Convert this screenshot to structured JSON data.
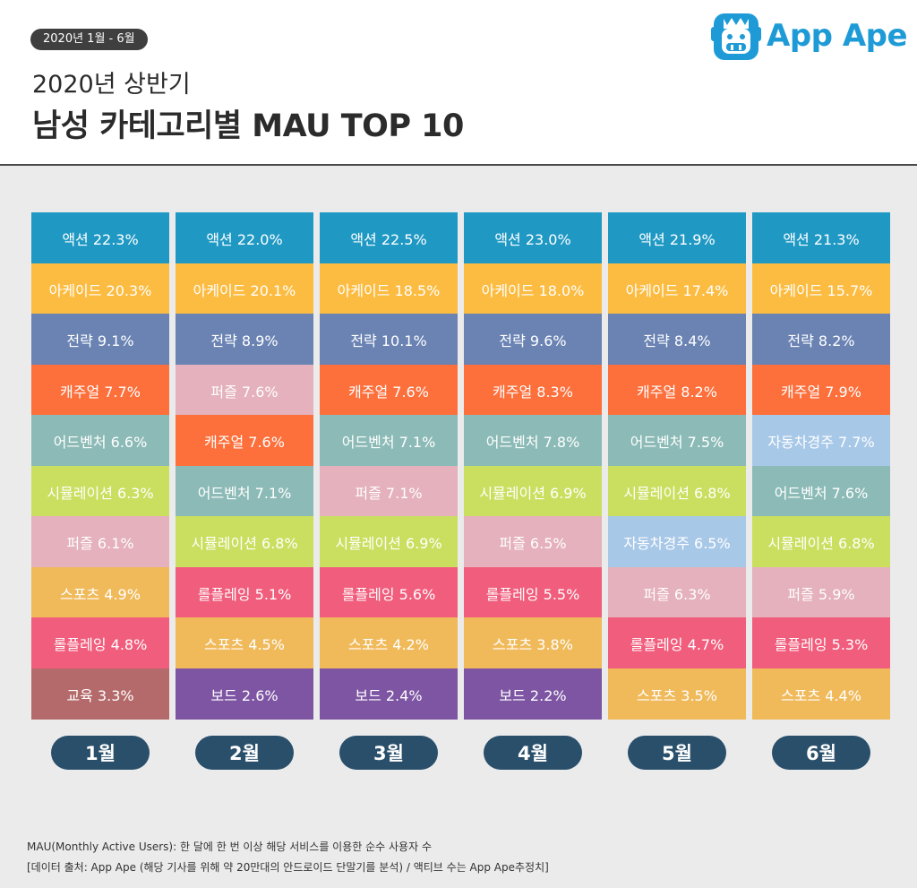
{
  "header": {
    "period_badge": "2020년 1월 - 6월",
    "title_line1": "2020년 상반기",
    "title_line2": "남성 카테고리별 MAU TOP 10"
  },
  "brand": {
    "name": "App Ape",
    "icon": "app-ape-logo-icon",
    "color": "#1e9bd7"
  },
  "category_colors": {
    "액션": "#1f99c4",
    "아케이드": "#fcbc42",
    "전략": "#6a83b3",
    "캐주얼": "#fd6f3b",
    "어드벤처": "#8cbbb7",
    "시뮬레이션": "#cadf5f",
    "퍼즐": "#e4b1bc",
    "스포츠": "#f0ba5b",
    "롤플레잉": "#f15d7c",
    "교육": "#b46a6a",
    "보드": "#7d55a3",
    "자동차경주": "#a8c8e8"
  },
  "chart_data": {
    "type": "table",
    "title": "2020년 상반기 남성 카테고리별 MAU TOP 10",
    "unit": "%",
    "months": [
      {
        "label": "1월",
        "items": [
          {
            "category": "액션",
            "value": 22.3,
            "text": "액션 22.3%"
          },
          {
            "category": "아케이드",
            "value": 20.3,
            "text": "아케이드 20.3%"
          },
          {
            "category": "전략",
            "value": 9.1,
            "text": "전략 9.1%"
          },
          {
            "category": "캐주얼",
            "value": 7.7,
            "text": "캐주얼 7.7%"
          },
          {
            "category": "어드벤처",
            "value": 6.6,
            "text": "어드벤처 6.6%"
          },
          {
            "category": "시뮬레이션",
            "value": 6.3,
            "text": "시뮬레이션 6.3%"
          },
          {
            "category": "퍼즐",
            "value": 6.1,
            "text": "퍼즐 6.1%"
          },
          {
            "category": "스포츠",
            "value": 4.9,
            "text": "스포츠 4.9%"
          },
          {
            "category": "롤플레잉",
            "value": 4.8,
            "text": "롤플레잉 4.8%"
          },
          {
            "category": "교육",
            "value": 3.3,
            "text": "교육 3.3%"
          }
        ]
      },
      {
        "label": "2월",
        "items": [
          {
            "category": "액션",
            "value": 22.0,
            "text": "액션 22.0%"
          },
          {
            "category": "아케이드",
            "value": 20.1,
            "text": "아케이드 20.1%"
          },
          {
            "category": "전략",
            "value": 8.9,
            "text": "전략 8.9%"
          },
          {
            "category": "퍼즐",
            "value": 7.6,
            "text": "퍼즐 7.6%"
          },
          {
            "category": "캐주얼",
            "value": 7.6,
            "text": "캐주얼 7.6%"
          },
          {
            "category": "어드벤처",
            "value": 7.1,
            "text": "어드벤처 7.1%"
          },
          {
            "category": "시뮬레이션",
            "value": 6.8,
            "text": "시뮬레이션 6.8%"
          },
          {
            "category": "롤플레잉",
            "value": 5.1,
            "text": "롤플레잉 5.1%"
          },
          {
            "category": "스포츠",
            "value": 4.5,
            "text": "스포츠 4.5%"
          },
          {
            "category": "보드",
            "value": 2.6,
            "text": "보드 2.6%"
          }
        ]
      },
      {
        "label": "3월",
        "items": [
          {
            "category": "액션",
            "value": 22.5,
            "text": "액션 22.5%"
          },
          {
            "category": "아케이드",
            "value": 18.5,
            "text": "아케이드 18.5%"
          },
          {
            "category": "전략",
            "value": 10.1,
            "text": "전략 10.1%"
          },
          {
            "category": "캐주얼",
            "value": 7.6,
            "text": "캐주얼 7.6%"
          },
          {
            "category": "어드벤처",
            "value": 7.1,
            "text": "어드벤처 7.1%"
          },
          {
            "category": "퍼즐",
            "value": 7.1,
            "text": "퍼즐 7.1%"
          },
          {
            "category": "시뮬레이션",
            "value": 6.9,
            "text": "시뮬레이션 6.9%"
          },
          {
            "category": "롤플레잉",
            "value": 5.6,
            "text": "롤플레잉 5.6%"
          },
          {
            "category": "스포츠",
            "value": 4.2,
            "text": "스포츠 4.2%"
          },
          {
            "category": "보드",
            "value": 2.4,
            "text": "보드 2.4%"
          }
        ]
      },
      {
        "label": "4월",
        "items": [
          {
            "category": "액션",
            "value": 23.0,
            "text": "액션 23.0%"
          },
          {
            "category": "아케이드",
            "value": 18.0,
            "text": "아케이드 18.0%"
          },
          {
            "category": "전략",
            "value": 9.6,
            "text": "전략 9.6%"
          },
          {
            "category": "캐주얼",
            "value": 8.3,
            "text": "캐주얼 8.3%"
          },
          {
            "category": "어드벤처",
            "value": 7.8,
            "text": "어드벤처 7.8%"
          },
          {
            "category": "시뮬레이션",
            "value": 6.9,
            "text": "시뮬레이션 6.9%"
          },
          {
            "category": "퍼즐",
            "value": 6.5,
            "text": "퍼즐 6.5%"
          },
          {
            "category": "롤플레잉",
            "value": 5.5,
            "text": "롤플레잉 5.5%"
          },
          {
            "category": "스포츠",
            "value": 3.8,
            "text": "스포츠 3.8%"
          },
          {
            "category": "보드",
            "value": 2.2,
            "text": "보드 2.2%"
          }
        ]
      },
      {
        "label": "5월",
        "items": [
          {
            "category": "액션",
            "value": 21.9,
            "text": "액션 21.9%"
          },
          {
            "category": "아케이드",
            "value": 17.4,
            "text": "아케이드 17.4%"
          },
          {
            "category": "전략",
            "value": 8.4,
            "text": "전략 8.4%"
          },
          {
            "category": "캐주얼",
            "value": 8.2,
            "text": "캐주얼 8.2%"
          },
          {
            "category": "어드벤처",
            "value": 7.5,
            "text": "어드벤처 7.5%"
          },
          {
            "category": "시뮬레이션",
            "value": 6.8,
            "text": "시뮬레이션 6.8%"
          },
          {
            "category": "자동차경주",
            "value": 6.5,
            "text": "자동차경주 6.5%"
          },
          {
            "category": "퍼즐",
            "value": 6.3,
            "text": "퍼즐 6.3%"
          },
          {
            "category": "롤플레잉",
            "value": 4.7,
            "text": "롤플레잉 4.7%"
          },
          {
            "category": "스포츠",
            "value": 3.5,
            "text": "스포츠 3.5%"
          }
        ]
      },
      {
        "label": "6월",
        "items": [
          {
            "category": "액션",
            "value": 21.3,
            "text": "액션 21.3%"
          },
          {
            "category": "아케이드",
            "value": 15.7,
            "text": "아케이드 15.7%"
          },
          {
            "category": "전략",
            "value": 8.2,
            "text": "전략 8.2%"
          },
          {
            "category": "캐주얼",
            "value": 7.9,
            "text": "캐주얼 7.9%"
          },
          {
            "category": "자동차경주",
            "value": 7.7,
            "text": "자동차경주 7.7%"
          },
          {
            "category": "어드벤처",
            "value": 7.6,
            "text": "어드벤처 7.6%"
          },
          {
            "category": "시뮬레이션",
            "value": 6.8,
            "text": "시뮬레이션 6.8%"
          },
          {
            "category": "퍼즐",
            "value": 5.9,
            "text": "퍼즐 5.9%"
          },
          {
            "category": "롤플레잉",
            "value": 5.3,
            "text": "롤플레잉 5.3%"
          },
          {
            "category": "스포츠",
            "value": 4.4,
            "text": "스포츠 4.4%"
          }
        ]
      }
    ]
  },
  "footer": {
    "note1": "MAU(Monthly Active Users):  한 달에 한 번 이상 해당 서비스를 이용한 순수 사용자 수",
    "note2": "[데이터 출처: App Ape (해당 기사를 위해 약 20만대의 안드로이드 단말기를 분석) / 액티브 수는 App Ape추정치]"
  }
}
